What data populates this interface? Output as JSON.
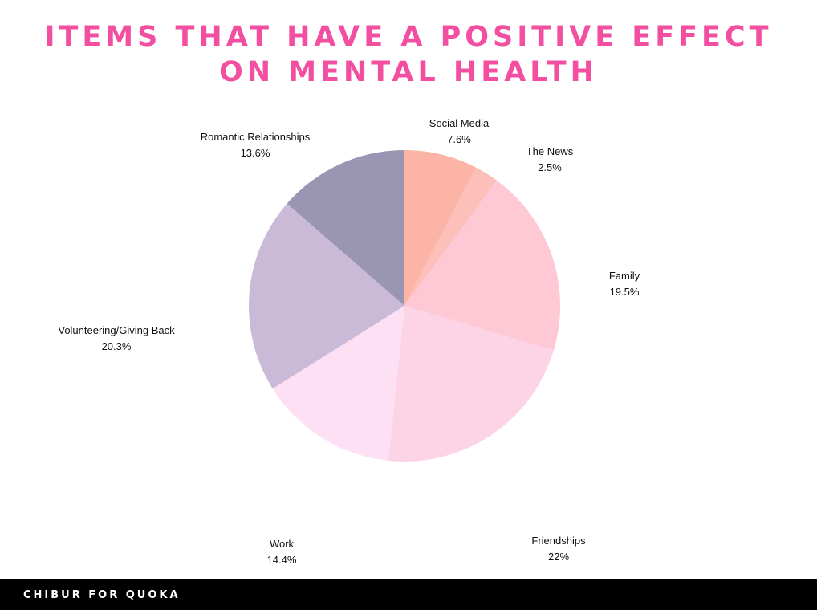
{
  "title": {
    "line1": "Items that have a positive effect",
    "line2": "on mental health",
    "color": "#f24fa0"
  },
  "footer": {
    "text": "CHIBUR FOR QUOKA"
  },
  "chart_data": {
    "type": "pie",
    "title": "Items that have a positive effect on mental health",
    "start_angle": "12 o'clock",
    "direction": "clockwise",
    "slices": [
      {
        "label": "Social Media",
        "value": 7.6,
        "display": "7.6%",
        "color": "#fbb4a5"
      },
      {
        "label": "The News",
        "value": 2.5,
        "display": "2.5%",
        "color": "#fdbfb9"
      },
      {
        "label": "Family",
        "value": 19.5,
        "display": "19.5%",
        "color": "#fec8d4"
      },
      {
        "label": "Friendships",
        "value": 22,
        "display": "22%",
        "color": "#fdd3e6"
      },
      {
        "label": "Work",
        "value": 14.4,
        "display": "14.4%",
        "color": "#fde0f4"
      },
      {
        "label": "Volunteering/Giving Back",
        "value": 20.3,
        "display": "20.3%",
        "color": "#cbbad7"
      },
      {
        "label": "Romantic Relationships",
        "value": 13.6,
        "display": "13.6%",
        "color": "#9a95b3"
      }
    ]
  }
}
